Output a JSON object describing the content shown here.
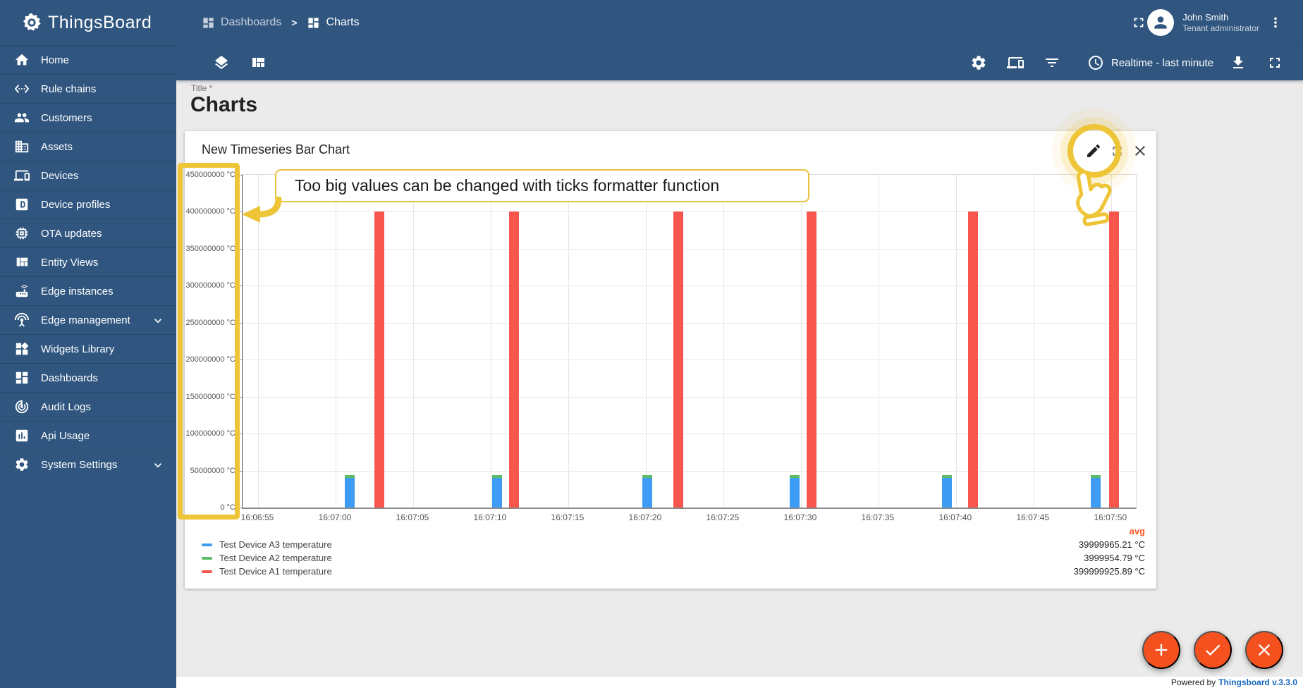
{
  "app": {
    "name": "ThingsBoard",
    "powered_by": "Powered by",
    "version_link": "Thingsboard v.3.3.0"
  },
  "colors": {
    "primary": "#305680",
    "accent_orange": "#f4511e",
    "highlight_gold": "#eec537",
    "link_blue": "#1769c0",
    "avg_orange": "#ff5722",
    "bar_blue": "#3e9cf5",
    "bar_green": "#5cbb66",
    "bar_red": "#f7564e"
  },
  "sidebar": {
    "items": [
      {
        "label": "Home",
        "icon": "home-icon"
      },
      {
        "label": "Rule chains",
        "icon": "rule-chains-icon"
      },
      {
        "label": "Customers",
        "icon": "customers-icon"
      },
      {
        "label": "Assets",
        "icon": "assets-icon"
      },
      {
        "label": "Devices",
        "icon": "devices-icon"
      },
      {
        "label": "Device profiles",
        "icon": "device-profiles-icon"
      },
      {
        "label": "OTA updates",
        "icon": "ota-updates-icon"
      },
      {
        "label": "Entity Views",
        "icon": "entity-views-icon"
      },
      {
        "label": "Edge instances",
        "icon": "edge-instances-icon"
      },
      {
        "label": "Edge management",
        "icon": "edge-management-icon",
        "expandable": true
      },
      {
        "label": "Widgets Library",
        "icon": "widgets-library-icon"
      },
      {
        "label": "Dashboards",
        "icon": "dashboards-icon"
      },
      {
        "label": "Audit Logs",
        "icon": "audit-logs-icon"
      },
      {
        "label": "Api Usage",
        "icon": "api-usage-icon"
      },
      {
        "label": "System Settings",
        "icon": "system-settings-icon",
        "expandable": true
      }
    ]
  },
  "header": {
    "breadcrumb": [
      {
        "label": "Dashboards",
        "icon": "dashboard-icon"
      },
      {
        "label": "Charts",
        "icon": "dashboard-icon"
      }
    ],
    "user": {
      "name": "John Smith",
      "role": "Tenant administrator"
    }
  },
  "toolbar": {
    "time_window": "Realtime - last minute"
  },
  "page": {
    "title_label": "Title *",
    "title": "Charts"
  },
  "widget": {
    "title": "New Timeseries Bar Chart"
  },
  "annotation": {
    "text": "Too big values can be changed with ticks formatter function"
  },
  "chart_data": {
    "type": "bar",
    "title": "New Timeseries Bar Chart",
    "stacked": true,
    "unit": "°C",
    "ylim": [
      0,
      450000000
    ],
    "y_tick_step": 50000000,
    "y_ticks": [
      "0 °C",
      "50000000 °C",
      "100000000 °C",
      "150000000 °C",
      "200000000 °C",
      "250000000 °C",
      "300000000 °C",
      "350000000 °C",
      "400000000 °C",
      "450000000 °C"
    ],
    "x_ticks": [
      "16:06:55",
      "16:07:00",
      "16:07:05",
      "16:07:10",
      "16:07:15",
      "16:07:20",
      "16:07:25",
      "16:07:30",
      "16:07:35",
      "16:07:40",
      "16:07:45",
      "16:07:50"
    ],
    "x_domain": [
      "16:06:54.0",
      "16:07:51.6"
    ],
    "legend_header": "avg",
    "legend_position": "bottom",
    "grid": true,
    "series": [
      {
        "name": "Test Device A3 temperature",
        "color": "#3e9cf5",
        "avg": "39999965.21 °C",
        "stack_on_previous": false,
        "points": [
          [
            "16:07:00.9",
            40000000
          ],
          [
            "16:07:10.4",
            40000000
          ],
          [
            "16:07:20.1",
            40000000
          ],
          [
            "16:07:29.6",
            40000000
          ],
          [
            "16:07:39.4",
            40000000
          ],
          [
            "16:07:49.0",
            40000000
          ]
        ]
      },
      {
        "name": "Test Device A2 temperature",
        "color": "#5cbb66",
        "avg": "3999954.79 °C",
        "stack_on_previous": true,
        "points": [
          [
            "16:07:00.9",
            4000000
          ],
          [
            "16:07:10.4",
            4000000
          ],
          [
            "16:07:20.1",
            4000000
          ],
          [
            "16:07:29.6",
            4000000
          ],
          [
            "16:07:39.4",
            4000000
          ],
          [
            "16:07:49.0",
            4000000
          ]
        ]
      },
      {
        "name": "Test Device A1 temperature",
        "color": "#f7564e",
        "avg": "399999925.89 °C",
        "stack_on_previous": false,
        "points": [
          [
            "16:07:02.8",
            400000000
          ],
          [
            "16:07:11.5",
            400000000
          ],
          [
            "16:07:22.1",
            400000000
          ],
          [
            "16:07:30.7",
            400000000
          ],
          [
            "16:07:41.1",
            400000000
          ],
          [
            "16:07:50.2",
            400000000
          ]
        ]
      }
    ]
  }
}
